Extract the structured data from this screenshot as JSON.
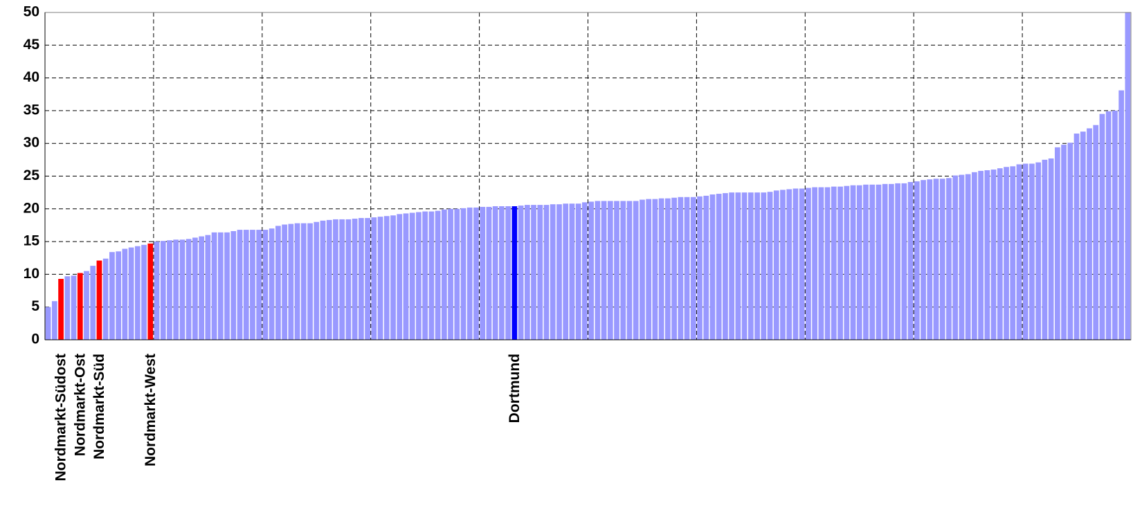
{
  "chart_data": {
    "type": "bar",
    "categories": [
      null,
      null,
      "Nordmarkt-Südost",
      null,
      null,
      "Nordmarkt-Ost",
      null,
      null,
      "Nordmarkt-Süd",
      null,
      null,
      null,
      null,
      null,
      null,
      null,
      "Nordmarkt-West",
      null,
      null,
      null,
      null,
      null,
      null,
      null,
      null,
      null,
      null,
      null,
      null,
      null,
      null,
      null,
      null,
      null,
      null,
      null,
      null,
      null,
      null,
      null,
      null,
      null,
      null,
      null,
      null,
      null,
      null,
      null,
      null,
      null,
      null,
      null,
      null,
      null,
      null,
      null,
      null,
      null,
      null,
      null,
      null,
      null,
      null,
      null,
      null,
      null,
      null,
      null,
      null,
      null,
      null,
      null,
      null,
      "Dortmund",
      null,
      null,
      null,
      null,
      null,
      null,
      null,
      null,
      null,
      null,
      null,
      null,
      null,
      null,
      null,
      null,
      null,
      null,
      null,
      null,
      null,
      null,
      null,
      null,
      null,
      null,
      null,
      null,
      null,
      null,
      null,
      null,
      null,
      null,
      null,
      null,
      null,
      null,
      null,
      null,
      null,
      null,
      null,
      null,
      null,
      null,
      null,
      null,
      null,
      null,
      null,
      null,
      null,
      null,
      null,
      null,
      null,
      null,
      null,
      null,
      null,
      null,
      null,
      null,
      null,
      null,
      null,
      null,
      null,
      null,
      null,
      null,
      null,
      null,
      null,
      null,
      null,
      null,
      null,
      null,
      null,
      null,
      null,
      null,
      null,
      null,
      null,
      null,
      null,
      null,
      null,
      null,
      null,
      null,
      null,
      null
    ],
    "values": [
      5.0,
      5.9,
      9.3,
      9.7,
      9.8,
      10.2,
      10.5,
      11.3,
      12.1,
      12.4,
      13.4,
      13.5,
      13.9,
      14.1,
      14.3,
      14.5,
      14.7,
      15.0,
      15.1,
      15.2,
      15.3,
      15.3,
      15.4,
      15.6,
      15.8,
      16.0,
      16.4,
      16.4,
      16.4,
      16.6,
      16.8,
      16.8,
      16.8,
      16.8,
      16.8,
      17.0,
      17.4,
      17.6,
      17.7,
      17.8,
      17.8,
      17.8,
      18.0,
      18.2,
      18.3,
      18.4,
      18.4,
      18.4,
      18.5,
      18.6,
      18.6,
      18.7,
      18.8,
      18.9,
      19.0,
      19.2,
      19.3,
      19.4,
      19.5,
      19.6,
      19.6,
      19.7,
      19.9,
      20.0,
      20.0,
      20.1,
      20.2,
      20.2,
      20.3,
      20.3,
      20.4,
      20.4,
      20.4,
      20.4,
      20.5,
      20.6,
      20.6,
      20.6,
      20.6,
      20.7,
      20.7,
      20.8,
      20.8,
      20.8,
      21.0,
      21.1,
      21.2,
      21.2,
      21.2,
      21.2,
      21.2,
      21.2,
      21.2,
      21.4,
      21.5,
      21.5,
      21.6,
      21.6,
      21.7,
      21.8,
      21.8,
      21.8,
      21.9,
      22.0,
      22.2,
      22.3,
      22.4,
      22.5,
      22.5,
      22.5,
      22.5,
      22.5,
      22.5,
      22.6,
      22.8,
      22.9,
      23.0,
      23.1,
      23.1,
      23.2,
      23.3,
      23.3,
      23.3,
      23.4,
      23.4,
      23.5,
      23.6,
      23.6,
      23.7,
      23.7,
      23.7,
      23.8,
      23.8,
      23.9,
      23.9,
      24.1,
      24.2,
      24.4,
      24.5,
      24.6,
      24.6,
      24.7,
      25.1,
      25.2,
      25.3,
      25.6,
      25.8,
      25.9,
      26.0,
      26.2,
      26.4,
      26.5,
      26.8,
      26.9,
      26.9,
      27.1,
      27.5,
      27.7,
      29.4,
      29.8,
      30.1,
      31.5,
      31.8,
      32.3,
      32.8,
      34.5,
      34.9,
      35.0,
      38.1,
      50.5
    ],
    "colors": [
      "#9999ff",
      "#9999ff",
      "#ff0000",
      "#9999ff",
      "#9999ff",
      "#ff0000",
      "#9999ff",
      "#9999ff",
      "#ff0000",
      "#9999ff",
      "#9999ff",
      "#9999ff",
      "#9999ff",
      "#9999ff",
      "#9999ff",
      "#9999ff",
      "#ff0000",
      "#9999ff",
      "#9999ff",
      "#9999ff",
      "#9999ff",
      "#9999ff",
      "#9999ff",
      "#9999ff",
      "#9999ff",
      "#9999ff",
      "#9999ff",
      "#9999ff",
      "#9999ff",
      "#9999ff",
      "#9999ff",
      "#9999ff",
      "#9999ff",
      "#9999ff",
      "#9999ff",
      "#9999ff",
      "#9999ff",
      "#9999ff",
      "#9999ff",
      "#9999ff",
      "#9999ff",
      "#9999ff",
      "#9999ff",
      "#9999ff",
      "#9999ff",
      "#9999ff",
      "#9999ff",
      "#9999ff",
      "#9999ff",
      "#9999ff",
      "#9999ff",
      "#9999ff",
      "#9999ff",
      "#9999ff",
      "#9999ff",
      "#9999ff",
      "#9999ff",
      "#9999ff",
      "#9999ff",
      "#9999ff",
      "#9999ff",
      "#9999ff",
      "#9999ff",
      "#9999ff",
      "#9999ff",
      "#9999ff",
      "#9999ff",
      "#9999ff",
      "#9999ff",
      "#9999ff",
      "#9999ff",
      "#9999ff",
      "#9999ff",
      "#0000ff",
      "#9999ff",
      "#9999ff",
      "#9999ff",
      "#9999ff",
      "#9999ff",
      "#9999ff",
      "#9999ff",
      "#9999ff",
      "#9999ff",
      "#9999ff",
      "#9999ff",
      "#9999ff",
      "#9999ff",
      "#9999ff",
      "#9999ff",
      "#9999ff",
      "#9999ff",
      "#9999ff",
      "#9999ff",
      "#9999ff",
      "#9999ff",
      "#9999ff",
      "#9999ff",
      "#9999ff",
      "#9999ff",
      "#9999ff",
      "#9999ff",
      "#9999ff",
      "#9999ff",
      "#9999ff",
      "#9999ff",
      "#9999ff",
      "#9999ff",
      "#9999ff",
      "#9999ff",
      "#9999ff",
      "#9999ff",
      "#9999ff",
      "#9999ff",
      "#9999ff",
      "#9999ff",
      "#9999ff",
      "#9999ff",
      "#9999ff",
      "#9999ff",
      "#9999ff",
      "#9999ff",
      "#9999ff",
      "#9999ff",
      "#9999ff",
      "#9999ff",
      "#9999ff",
      "#9999ff",
      "#9999ff",
      "#9999ff",
      "#9999ff",
      "#9999ff",
      "#9999ff",
      "#9999ff",
      "#9999ff",
      "#9999ff",
      "#9999ff",
      "#9999ff",
      "#9999ff",
      "#9999ff",
      "#9999ff",
      "#9999ff",
      "#9999ff",
      "#9999ff",
      "#9999ff",
      "#9999ff",
      "#9999ff",
      "#9999ff",
      "#9999ff",
      "#9999ff",
      "#9999ff",
      "#9999ff",
      "#9999ff",
      "#9999ff",
      "#9999ff",
      "#9999ff",
      "#9999ff",
      "#9999ff",
      "#9999ff",
      "#9999ff",
      "#9999ff",
      "#9999ff",
      "#9999ff",
      "#9999ff",
      "#9999ff",
      "#9999ff",
      "#9999ff",
      "#9999ff",
      "#9999ff",
      "#9999ff",
      "#9999ff"
    ],
    "ylim": [
      0,
      50
    ],
    "yticks": [
      0,
      5,
      10,
      15,
      20,
      25,
      30,
      35,
      40,
      45,
      50
    ],
    "grid": true
  }
}
